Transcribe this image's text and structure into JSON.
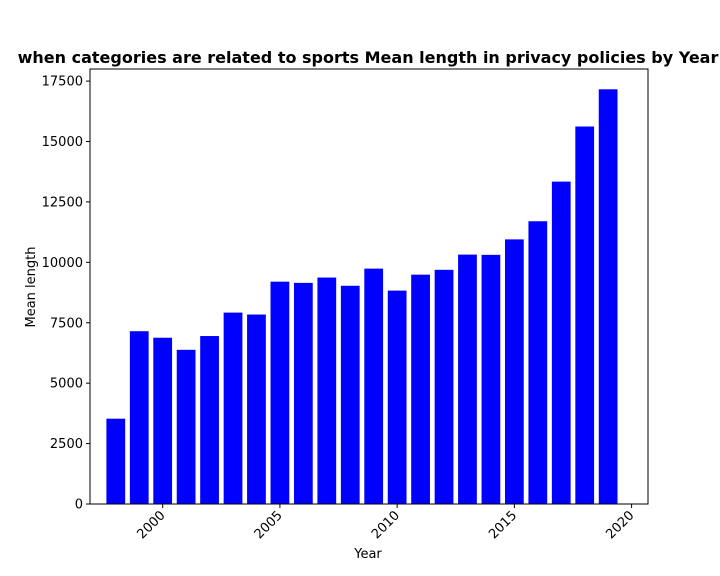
{
  "chart_data": {
    "type": "bar",
    "title": "when categories are related to sports Mean length in privacy policies by Year",
    "xlabel": "Year",
    "ylabel": "Mean length",
    "bar_color": "#0000ff",
    "x": [
      1998,
      1999,
      2000,
      2001,
      2002,
      2003,
      2004,
      2005,
      2006,
      2007,
      2008,
      2009,
      2010,
      2011,
      2012,
      2013,
      2014,
      2015,
      2016,
      2017,
      2018,
      2019
    ],
    "values": [
      3530,
      7150,
      6880,
      6380,
      6950,
      7920,
      7840,
      9200,
      9150,
      9370,
      9030,
      9740,
      8830,
      9490,
      9690,
      10320,
      10310,
      10950,
      11700,
      13340,
      15620,
      17160
    ],
    "xlim": [
      1996.9,
      2020.7
    ],
    "ylim": [
      0,
      18000
    ],
    "x_ticks": [
      2000,
      2005,
      2010,
      2015,
      2020
    ],
    "x_tick_labels": [
      "2000",
      "2005",
      "2010",
      "2015",
      "2020"
    ],
    "y_ticks": [
      0,
      2500,
      5000,
      7500,
      10000,
      12500,
      15000,
      17500
    ],
    "y_tick_labels": [
      "0",
      "2500",
      "5000",
      "7500",
      "10000",
      "12500",
      "15000",
      "17500"
    ],
    "x_tick_rotation": 45,
    "grid": false,
    "legend": "none"
  }
}
